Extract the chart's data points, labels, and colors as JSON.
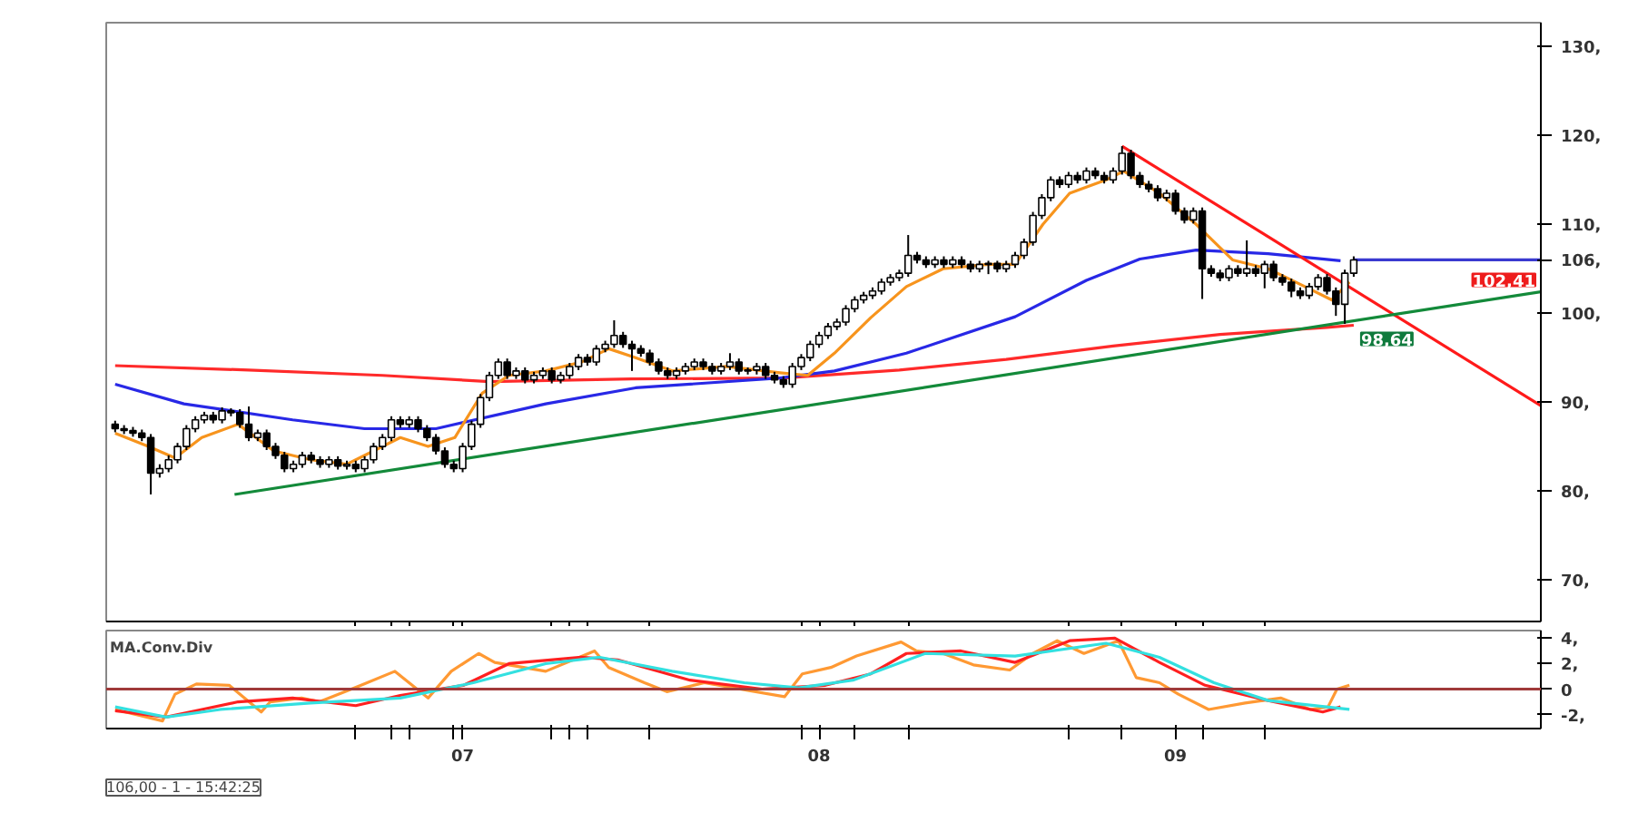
{
  "chart_data": [
    {
      "type": "candlestick",
      "x": [
        6.025,
        6.05,
        6.075,
        6.1,
        6.125,
        6.15,
        6.175,
        6.2,
        6.225,
        6.25,
        6.275,
        6.3,
        6.325,
        6.35,
        6.375,
        6.4,
        6.425,
        6.45,
        6.475,
        6.5,
        6.525,
        6.55,
        6.575,
        6.6,
        6.625,
        6.65,
        6.675,
        6.7,
        6.725,
        6.75,
        6.775,
        6.8,
        6.825,
        6.85,
        6.875,
        6.9,
        6.925,
        6.95,
        6.975,
        7.0,
        7.025,
        7.05,
        7.075,
        7.1,
        7.125,
        7.15,
        7.175,
        7.2,
        7.225,
        7.25,
        7.275,
        7.3,
        7.325,
        7.35,
        7.375,
        7.4,
        7.425,
        7.45,
        7.475,
        7.5,
        7.525,
        7.55,
        7.575,
        7.6,
        7.625,
        7.65,
        7.675,
        7.7,
        7.725,
        7.75,
        7.775,
        7.8,
        7.825,
        7.85,
        7.875,
        7.9,
        7.925,
        7.95,
        7.975,
        8.0,
        8.025,
        8.05,
        8.075,
        8.1,
        8.125,
        8.15,
        8.175,
        8.2,
        8.225,
        8.25,
        8.275,
        8.3,
        8.325,
        8.35,
        8.375,
        8.4,
        8.425,
        8.45,
        8.475,
        8.5,
        8.525,
        8.55,
        8.575,
        8.6,
        8.625,
        8.65,
        8.675,
        8.7,
        8.725,
        8.75,
        8.775,
        8.8,
        8.825,
        8.85,
        8.875,
        8.9,
        8.925,
        8.95,
        8.975,
        9.0,
        9.025,
        9.05,
        9.075,
        9.1,
        9.125,
        9.15,
        9.175,
        9.2,
        9.225,
        9.25,
        9.275,
        9.3,
        9.325,
        9.35,
        9.375,
        9.4,
        9.425,
        9.45,
        9.475,
        9.5
      ],
      "ohlc": [
        [
          87.5,
          87.9,
          86.6,
          87
        ],
        [
          87,
          87.4,
          86.4,
          86.8
        ],
        [
          86.8,
          87.2,
          86.1,
          86.5
        ],
        [
          86.5,
          86.9,
          85.6,
          86
        ],
        [
          86,
          86.4,
          79.6,
          82
        ],
        [
          82,
          83,
          81.5,
          82.5
        ],
        [
          82.5,
          84,
          82.1,
          83.5
        ],
        [
          83.5,
          85.4,
          83.1,
          85
        ],
        [
          85,
          87.4,
          84.6,
          87
        ],
        [
          87,
          88.4,
          86.6,
          88
        ],
        [
          88,
          88.9,
          87.6,
          88.5
        ],
        [
          88.5,
          88.9,
          87.6,
          88
        ],
        [
          88,
          89.4,
          87.6,
          89
        ],
        [
          89,
          89.3,
          88.4,
          88.8
        ],
        [
          88.8,
          89.2,
          87.1,
          87.5
        ],
        [
          87.5,
          89.5,
          85.6,
          86
        ],
        [
          86,
          86.9,
          85.6,
          86.5
        ],
        [
          86.5,
          86.9,
          84.6,
          85
        ],
        [
          85,
          85.4,
          83.6,
          84
        ],
        [
          84,
          84.4,
          82.1,
          82.5
        ],
        [
          82.5,
          83.4,
          82.1,
          83
        ],
        [
          83,
          84.4,
          82.6,
          84
        ],
        [
          84,
          84.4,
          83.1,
          83.5
        ],
        [
          83.5,
          83.9,
          82.6,
          83
        ],
        [
          83,
          83.9,
          82.6,
          83.5
        ],
        [
          83.5,
          83.9,
          82.4,
          82.8
        ],
        [
          82.8,
          83.4,
          82.4,
          83
        ],
        [
          83,
          83.4,
          82.1,
          82.5
        ],
        [
          82.5,
          83.9,
          82.1,
          83.5
        ],
        [
          83.5,
          85.4,
          83.1,
          85
        ],
        [
          85,
          86.4,
          84.6,
          86
        ],
        [
          86,
          88.4,
          85.6,
          88
        ],
        [
          88,
          88.4,
          87.1,
          87.5
        ],
        [
          87.5,
          88.4,
          87.1,
          88
        ],
        [
          88,
          88.4,
          86.6,
          87
        ],
        [
          87,
          87.4,
          85.6,
          86
        ],
        [
          86,
          86.4,
          84.1,
          84.5
        ],
        [
          84.5,
          84.9,
          82.6,
          83
        ],
        [
          83,
          83.4,
          82.1,
          82.5
        ],
        [
          82.5,
          85.4,
          82.1,
          85
        ],
        [
          85,
          87.9,
          84.6,
          87.5
        ],
        [
          87.5,
          90.9,
          87.1,
          90.5
        ],
        [
          90.5,
          93.4,
          90.1,
          93
        ],
        [
          93,
          94.9,
          92.6,
          94.5
        ],
        [
          94.5,
          94.9,
          92.6,
          93
        ],
        [
          93,
          93.9,
          92.6,
          93.5
        ],
        [
          93.5,
          93.9,
          92.1,
          92.5
        ],
        [
          92.5,
          93.4,
          92.1,
          93
        ],
        [
          93,
          93.9,
          92.6,
          93.5
        ],
        [
          93.5,
          93.9,
          92.1,
          92.5
        ],
        [
          92.5,
          93.4,
          92.1,
          93
        ],
        [
          93,
          94.4,
          92.6,
          94
        ],
        [
          94,
          95.4,
          93.6,
          95
        ],
        [
          95,
          95.4,
          94.1,
          94.5
        ],
        [
          94.5,
          96.4,
          94.1,
          96
        ],
        [
          96,
          96.9,
          95.6,
          96.5
        ],
        [
          96.5,
          99.2,
          96.1,
          97.5
        ],
        [
          97.5,
          97.9,
          96.1,
          96.5
        ],
        [
          96.5,
          96.9,
          93.5,
          96
        ],
        [
          96,
          96.4,
          95.1,
          95.5
        ],
        [
          95.5,
          95.9,
          94.1,
          94.5
        ],
        [
          94.5,
          94.9,
          93.1,
          93.5
        ],
        [
          93.5,
          93.9,
          92.6,
          93
        ],
        [
          93,
          93.9,
          92.6,
          93.5
        ],
        [
          93.5,
          94.4,
          93.1,
          94
        ],
        [
          94,
          94.9,
          93.6,
          94.5
        ],
        [
          94.5,
          94.9,
          93.6,
          94
        ],
        [
          94,
          94.4,
          93.1,
          93.5
        ],
        [
          93.5,
          94.4,
          93.1,
          94
        ],
        [
          94,
          95.5,
          93.6,
          94.5
        ],
        [
          94.5,
          94.9,
          93.1,
          93.5
        ],
        [
          93.5,
          93.9,
          93.1,
          93.6
        ],
        [
          93.6,
          94.4,
          93.1,
          94
        ],
        [
          94,
          94.4,
          92.6,
          93
        ],
        [
          93,
          93.4,
          92.1,
          92.5
        ],
        [
          92.5,
          92.9,
          91.6,
          92
        ],
        [
          92,
          94.4,
          91.6,
          94
        ],
        [
          94,
          95.4,
          93.6,
          95
        ],
        [
          95,
          96.9,
          94.6,
          96.5
        ],
        [
          96.5,
          97.9,
          96.1,
          97.5
        ],
        [
          97.5,
          98.9,
          97.1,
          98.5
        ],
        [
          98.5,
          99.4,
          98.1,
          99
        ],
        [
          99,
          100.9,
          98.6,
          100.5
        ],
        [
          100.5,
          101.9,
          100.1,
          101.5
        ],
        [
          101.5,
          102.4,
          101.1,
          102
        ],
        [
          102,
          102.9,
          101.6,
          102.5
        ],
        [
          102.5,
          103.9,
          102.1,
          103.5
        ],
        [
          103.5,
          104.4,
          103.1,
          104
        ],
        [
          104,
          104.9,
          103.6,
          104.5
        ],
        [
          104.5,
          108.8,
          104.1,
          106.5
        ],
        [
          106.5,
          106.9,
          105.6,
          106
        ],
        [
          106,
          106.4,
          105.1,
          105.5
        ],
        [
          105.5,
          106.4,
          105.1,
          106
        ],
        [
          106,
          106.4,
          105.1,
          105.5
        ],
        [
          105.5,
          106.4,
          105.1,
          106
        ],
        [
          106,
          106.4,
          105.1,
          105.5
        ],
        [
          105.5,
          105.9,
          104.6,
          105
        ],
        [
          105,
          105.9,
          104.6,
          105.5
        ],
        [
          105.5,
          105.9,
          104.4,
          105.6
        ],
        [
          105.6,
          105.9,
          104.6,
          105
        ],
        [
          105,
          105.9,
          104.6,
          105.5
        ],
        [
          105.5,
          106.9,
          105.1,
          106.5
        ],
        [
          106.5,
          108.4,
          106.1,
          108
        ],
        [
          108,
          111.4,
          107.6,
          111
        ],
        [
          111,
          113.4,
          110.6,
          113
        ],
        [
          113,
          115.4,
          112.6,
          115
        ],
        [
          115,
          115.4,
          114.1,
          114.5
        ],
        [
          114.5,
          115.9,
          114.1,
          115.5
        ],
        [
          115.5,
          115.9,
          114.6,
          115
        ],
        [
          115,
          116.4,
          114.6,
          116
        ],
        [
          116,
          116.4,
          115.1,
          115.5
        ],
        [
          115.5,
          115.9,
          114.6,
          115
        ],
        [
          115,
          116.4,
          114.6,
          116
        ],
        [
          116,
          118.8,
          115.6,
          118
        ],
        [
          118,
          118.4,
          115.1,
          115.5
        ],
        [
          115.5,
          115.9,
          114.1,
          114.5
        ],
        [
          114.5,
          114.9,
          113.6,
          114
        ],
        [
          114,
          114.4,
          112.6,
          113
        ],
        [
          113,
          113.9,
          112.6,
          113.5
        ],
        [
          113.5,
          113.9,
          111.1,
          111.5
        ],
        [
          111.5,
          111.9,
          110.1,
          110.5
        ],
        [
          110.5,
          111.9,
          110.1,
          111.5
        ],
        [
          111.5,
          111.9,
          101.6,
          105
        ],
        [
          105,
          105.4,
          104.1,
          104.5
        ],
        [
          104.5,
          104.9,
          103.6,
          104
        ],
        [
          104,
          105.4,
          103.6,
          105
        ],
        [
          105,
          105.4,
          104.1,
          104.5
        ],
        [
          104.5,
          108.2,
          104.1,
          105
        ],
        [
          105,
          105.4,
          104.1,
          104.5
        ],
        [
          104.5,
          105.9,
          102.8,
          105.5
        ],
        [
          105.5,
          105.9,
          103.6,
          104
        ],
        [
          104,
          104.4,
          103.1,
          103.5
        ],
        [
          103.5,
          103.9,
          101.8,
          102.5
        ],
        [
          102.5,
          102.9,
          101.6,
          102
        ],
        [
          102,
          103.4,
          101.6,
          103
        ],
        [
          103,
          104.4,
          102.6,
          104
        ],
        [
          104,
          104.4,
          102.1,
          102.5
        ],
        [
          102.5,
          102.9,
          99.7,
          101
        ],
        [
          101,
          104.9,
          98.8,
          104.5
        ],
        [
          104.5,
          106.4,
          104.1,
          106
        ]
      ],
      "series": [
        {
          "type": "line",
          "color": "#ff2a2a",
          "x": [
            6.025,
            6.4,
            6.775,
            7.075,
            7.475,
            7.9,
            8.225,
            8.525,
            8.825,
            9.125,
            9.425,
            9.5
          ],
          "values": [
            94.1,
            93.6,
            93.0,
            92.3,
            92.6,
            92.7,
            93.6,
            94.8,
            96.3,
            97.6,
            98.4,
            98.64
          ]
        },
        {
          "type": "line",
          "color": "#2828e6",
          "x": [
            6.025,
            6.218,
            6.523,
            6.725,
            6.925,
            7.233,
            7.485,
            7.89,
            8.043,
            8.245,
            8.55,
            8.75,
            8.9,
            9.058,
            9.26,
            9.463
          ],
          "values": [
            92,
            89.8,
            88,
            87,
            87,
            89.8,
            91.6,
            92.7,
            93.5,
            95.5,
            99.6,
            103.7,
            106.1,
            107.1,
            106.7,
            105.9
          ]
        },
        {
          "type": "line",
          "color": "#f7941d",
          "x": [
            6.025,
            6.118,
            6.193,
            6.268,
            6.37,
            6.47,
            6.573,
            6.675,
            6.75,
            6.825,
            6.903,
            6.978,
            7.055,
            7.13,
            7.233,
            7.333,
            7.41,
            7.485,
            7.588,
            7.74,
            7.89,
            7.968,
            8.043,
            8.145,
            8.245,
            8.348,
            8.475,
            8.55,
            8.628,
            8.703,
            8.805,
            8.855,
            8.955,
            9.058,
            9.16,
            9.26,
            9.363,
            9.438,
            9.488
          ],
          "values": [
            86.5,
            85,
            83.7,
            86,
            87.5,
            84.5,
            83.5,
            83,
            84.5,
            86,
            85,
            86,
            91,
            93,
            93.5,
            94.5,
            96,
            95,
            93.5,
            94,
            93.3,
            93,
            95.5,
            99.5,
            103,
            105,
            105.5,
            105.5,
            110,
            113.5,
            115,
            116,
            113.5,
            110,
            106,
            105,
            103,
            101.5,
            103.5
          ]
        },
        {
          "type": "line",
          "color": "#3a3ad0",
          "x": [
            9.5,
            10.025
          ],
          "values": [
            106,
            106
          ]
        },
        {
          "type": "line",
          "color": "#ff1a1a",
          "x": [
            8.85,
            10.025
          ],
          "values": [
            118.8,
            89.6
          ]
        },
        {
          "type": "line",
          "color": "#138a3a",
          "x": [
            6.36,
            10.025
          ],
          "values": [
            79.6,
            102.41
          ]
        }
      ],
      "xlim": [
        6.0,
        10.025
      ],
      "ylim": [
        65.3,
        132.7
      ],
      "xticks": [
        {
          "value": 6.7,
          "label": null
        },
        {
          "value": 6.8,
          "label": null
        },
        {
          "value": 6.85,
          "label": null
        },
        {
          "value": 6.975,
          "label": null
        },
        {
          "value": 7,
          "label": null
        },
        {
          "value": 7.25,
          "label": null
        },
        {
          "value": 7.3,
          "label": null
        },
        {
          "value": 7.35,
          "label": null
        },
        {
          "value": 7.525,
          "label": null
        },
        {
          "value": 7.95,
          "label": null
        },
        {
          "value": 8,
          "label": null
        },
        {
          "value": 8.1,
          "label": null
        },
        {
          "value": 8.25,
          "label": null
        },
        {
          "value": 8.7,
          "label": null
        },
        {
          "value": 8.85,
          "label": null
        },
        {
          "value": 9,
          "label": null
        },
        {
          "value": 9.075,
          "label": null
        },
        {
          "value": 9.25,
          "label": null
        }
      ],
      "yticks": [
        {
          "value": 130,
          "label": "130,"
        },
        {
          "value": 120,
          "label": "120,"
        },
        {
          "value": 110,
          "label": "110,"
        },
        {
          "value": 106,
          "label": "106,"
        },
        {
          "value": 100,
          "label": "100,"
        },
        {
          "value": 90,
          "label": "90,"
        },
        {
          "value": 80,
          "label": "80,"
        },
        {
          "value": 70,
          "label": "70,"
        }
      ],
      "tick_labels": "y",
      "annotations": [
        {
          "text": "102,41",
          "x": 10.025,
          "y": 102.41
        },
        {
          "text": "98,64",
          "x": 9.5,
          "y": 98.64
        }
      ]
    },
    {
      "type": "line",
      "title": "MA.Conv.Div",
      "series": [
        {
          "color": "#ff9933",
          "x": [
            6.025,
            6.158,
            6.193,
            6.253,
            6.345,
            6.435,
            6.46,
            6.548,
            6.598,
            6.715,
            6.81,
            6.903,
            6.968,
            7.045,
            7.09,
            7.233,
            7.37,
            7.41,
            7.51,
            7.573,
            7.678,
            7.8,
            7.903,
            7.953,
            8.033,
            8.105,
            8.23,
            8.273,
            8.348,
            8.433,
            8.535,
            8.6,
            8.668,
            8.743,
            8.84,
            8.89,
            8.955,
            9.008,
            9.093,
            9.195,
            9.295,
            9.378,
            9.428,
            9.453,
            9.488
          ],
          "values": [
            -1.6,
            -2.5,
            -0.4,
            0.4,
            0.3,
            -1.8,
            -1,
            -0.7,
            -1,
            0.3,
            1.4,
            -0.7,
            1.4,
            2.8,
            2.1,
            1.4,
            3.0,
            1.7,
            0.5,
            -0.2,
            0.5,
            -0.1,
            -0.6,
            1.2,
            1.7,
            2.6,
            3.7,
            3.0,
            2.8,
            1.9,
            1.5,
            2.8,
            3.8,
            2.8,
            3.8,
            0.9,
            0.5,
            -0.4,
            -1.6,
            -1.1,
            -0.7,
            -1.6,
            -1.4,
            0,
            0.3
          ]
        },
        {
          "color": "#ff2020",
          "x": [
            6.025,
            6.168,
            6.268,
            6.37,
            6.523,
            6.7,
            6.825,
            7.003,
            7.13,
            7.333,
            7.435,
            7.638,
            7.84,
            8.018,
            8.145,
            8.245,
            8.398,
            8.55,
            8.703,
            8.83,
            8.955,
            9.083,
            9.26,
            9.413,
            9.463
          ],
          "values": [
            -1.7,
            -2.2,
            -1.6,
            -1,
            -0.7,
            -1.3,
            -0.5,
            0.3,
            2.0,
            2.5,
            2.3,
            0.7,
            0,
            0.3,
            1.2,
            2.8,
            3.0,
            2.1,
            3.8,
            4.0,
            2.1,
            0.3,
            -0.9,
            -1.8,
            -1.4
          ]
        },
        {
          "color": "#33e0e0",
          "x": [
            6.025,
            6.168,
            6.32,
            6.573,
            6.825,
            7.03,
            7.233,
            7.385,
            7.588,
            7.79,
            7.943,
            8.095,
            8.298,
            8.55,
            8.805,
            8.955,
            9.108,
            9.26,
            9.488
          ],
          "values": [
            -1.4,
            -2.2,
            -1.6,
            -1.1,
            -0.7,
            0.5,
            2,
            2.5,
            1.4,
            0.5,
            0.1,
            0.7,
            2.8,
            2.6,
            3.6,
            2.5,
            0.5,
            -0.9,
            -1.6
          ]
        }
      ],
      "xlim": [
        6.0,
        10.025
      ],
      "ylim": [
        -3.1,
        4.6
      ],
      "xticks": [
        {
          "value": 6.7,
          "label": null
        },
        {
          "value": 6.8,
          "label": null
        },
        {
          "value": 6.85,
          "label": null
        },
        {
          "value": 6.975,
          "label": null
        },
        {
          "value": 7,
          "label": "07"
        },
        {
          "value": 7.25,
          "label": null
        },
        {
          "value": 7.3,
          "label": null
        },
        {
          "value": 7.35,
          "label": null
        },
        {
          "value": 7.525,
          "label": null
        },
        {
          "value": 7.95,
          "label": null
        },
        {
          "value": 8,
          "label": "08"
        },
        {
          "value": 8.1,
          "label": null
        },
        {
          "value": 8.25,
          "label": null
        },
        {
          "value": 8.7,
          "label": null
        },
        {
          "value": 8.85,
          "label": null
        },
        {
          "value": 9,
          "label": "09"
        },
        {
          "value": 9.075,
          "label": null
        },
        {
          "value": 9.25,
          "label": null
        }
      ],
      "yticks": [
        {
          "value": 4,
          "label": "4,"
        },
        {
          "value": 2,
          "label": "2,"
        },
        0,
        {
          "value": -2,
          "label": "-2,"
        }
      ],
      "ref_lines": [
        {
          "axis": "y",
          "value": 0,
          "color": "#a03a3a"
        }
      ],
      "annotations": [
        "106,00 - 1 - 15:42:25"
      ]
    }
  ]
}
